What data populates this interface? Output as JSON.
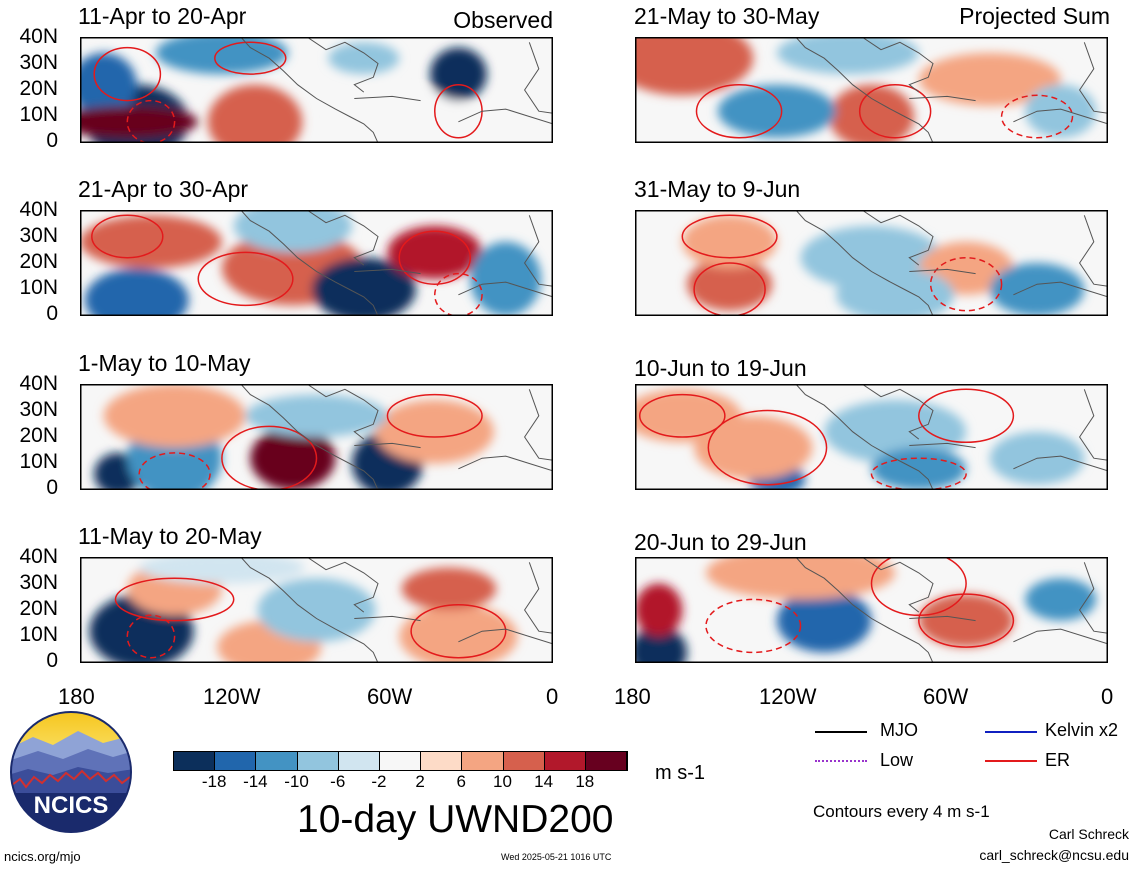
{
  "panels_left": [
    {
      "title": "11-Apr to 20-Apr",
      "corner": "Observed"
    },
    {
      "title": "21-Apr to 30-Apr",
      "corner": ""
    },
    {
      "title": "1-May to 10-May",
      "corner": ""
    },
    {
      "title": "11-May to 20-May",
      "corner": ""
    }
  ],
  "panels_right": [
    {
      "title": "21-May to 30-May",
      "corner": "Projected Sum"
    },
    {
      "title": "31-May to 9-Jun",
      "corner": ""
    },
    {
      "title": "10-Jun to 19-Jun",
      "corner": ""
    },
    {
      "title": "20-Jun to 29-Jun",
      "corner": ""
    }
  ],
  "lat_labels": [
    "40N",
    "30N",
    "20N",
    "10N",
    "0"
  ],
  "lon_labels": [
    "180",
    "120W",
    "60W",
    "0"
  ],
  "colorbar": {
    "ticks": [
      "-18",
      "-14",
      "-10",
      "-6",
      "-2",
      "2",
      "6",
      "10",
      "14",
      "18"
    ],
    "units": "m s-1",
    "colors": [
      "#0c2f5b",
      "#2166ac",
      "#4393c3",
      "#92c5de",
      "#d1e5f0",
      "#f7f7f7",
      "#fddbc7",
      "#f4a582",
      "#d6604d",
      "#b2182b",
      "#67001f"
    ]
  },
  "main_title": "10-day UWND200",
  "legend": [
    {
      "label": "MJO",
      "color": "#000000",
      "style": "solid"
    },
    {
      "label": "Kelvin x2",
      "color": "#1020c0",
      "style": "solid"
    },
    {
      "label": "Low",
      "color": "#9933cc",
      "style": "dotted"
    },
    {
      "label": "ER",
      "color": "#e31a1c",
      "style": "solid"
    }
  ],
  "contours_note": "Contours every 4 m s-1",
  "author": "Carl Schreck",
  "email": "carl_schreck@ncsu.edu",
  "website": "ncics.org/mjo",
  "timestamp": "Wed 2025-05-21 1016 UTC",
  "logo_text": "NCICS"
}
